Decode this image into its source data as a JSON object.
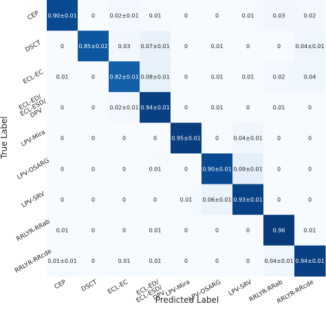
{
  "chart_data": {
    "type": "heatmap",
    "xlabel": "Predicted Label",
    "ylabel": "True Label",
    "row_labels": [
      "CEP",
      "DSCT",
      "ECL-EC",
      "ECL-ED/\nECL-ESD/\nDPV",
      "LPV-Mira",
      "LPV-OSARG",
      "LPV-SRV",
      "RRLYR-RRab",
      "RRLYR-RRcde"
    ],
    "col_labels": [
      "CEP",
      "DSCT",
      "ECL-EC",
      "ECL-ED/\nECL-ESD/\nDPV",
      "LPV-Mira",
      "LPV-OSARG",
      "LPV-SRV",
      "RRLYR-RRab",
      "RRLYR-RRcde"
    ],
    "values": [
      [
        0.9,
        0,
        0.02,
        0.01,
        0,
        0,
        0.01,
        0.03,
        0.02
      ],
      [
        0,
        0.85,
        0.03,
        0.07,
        0,
        0.01,
        0,
        0,
        0.04
      ],
      [
        0.01,
        0,
        0.82,
        0.08,
        0,
        0.01,
        0.01,
        0.02,
        0.04
      ],
      [
        0,
        0,
        0.02,
        0.94,
        0,
        0.01,
        0,
        0.01,
        0
      ],
      [
        0,
        0,
        0,
        0,
        0.95,
        0,
        0.04,
        0,
        0
      ],
      [
        0,
        0,
        0,
        0.01,
        0,
        0.9,
        0.09,
        0,
        0
      ],
      [
        0,
        0,
        0,
        0,
        0.01,
        0.06,
        0.93,
        0,
        0
      ],
      [
        0.01,
        0,
        0,
        0.01,
        0,
        0,
        0,
        0.96,
        0.01
      ],
      [
        0.01,
        0,
        0.01,
        0.01,
        0,
        0,
        0,
        0.04,
        0.94
      ]
    ],
    "cell_labels": [
      [
        "0.90±0.01",
        "0",
        "0.02±0.01",
        "0.01",
        "0",
        "0",
        "0.01",
        "0.03",
        "0.02"
      ],
      [
        "0",
        "0.85±0.02",
        "0.03",
        "0.07±0.01",
        "0",
        "0.01",
        "0",
        "0",
        "0.04±0.01"
      ],
      [
        "0.01",
        "0",
        "0.82±0.01",
        "0.08±0.01",
        "0",
        "0.01",
        "0.01",
        "0.02",
        "0.04"
      ],
      [
        "0",
        "0",
        "0.02±0.01",
        "0.94±0.01",
        "0",
        "0.01",
        "0",
        "0.01",
        "0"
      ],
      [
        "0",
        "0",
        "0",
        "0",
        "0.95±0.01",
        "0",
        "0.04±0.01",
        "0",
        "0"
      ],
      [
        "0",
        "0",
        "0",
        "0.01",
        "0",
        "0.90±0.01",
        "0.09±0.01",
        "0",
        "0"
      ],
      [
        "0",
        "0",
        "0",
        "0",
        "0.01",
        "0.06±0.01",
        "0.93±0.01",
        "0",
        "0"
      ],
      [
        "0.01",
        "0",
        "0",
        "0.01",
        "0",
        "0",
        "0",
        "0.96",
        "0.01"
      ],
      [
        "0.01±0.01",
        "0",
        "0.01",
        "0.01",
        "0",
        "0",
        "0",
        "0.04±0.01",
        "0.94±0.01"
      ]
    ],
    "colormap": "Blues",
    "color_low": "#f7fbff",
    "color_high": "#08306b",
    "text_color_dark": "#222222",
    "text_color_light": "#ffffff",
    "grid": false
  }
}
